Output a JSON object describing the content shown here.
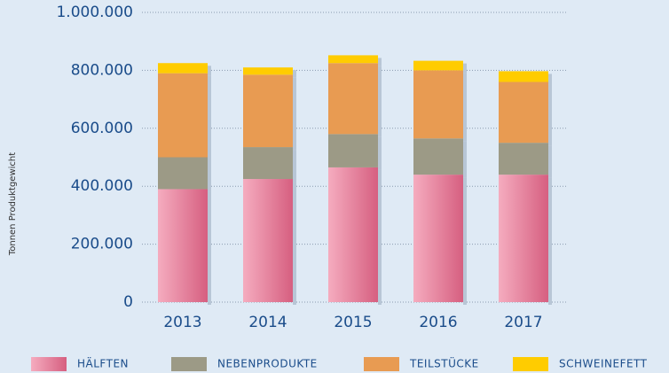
{
  "chart_data": {
    "type": "stacked_bar",
    "y_label": "Tonnen Produktgewicht",
    "categories": [
      "2013",
      "2014",
      "2015",
      "2016",
      "2017"
    ],
    "series": [
      {
        "name": "HÄLFTEN",
        "color": "#e07593",
        "values": [
          390000,
          425000,
          465000,
          440000,
          440000
        ]
      },
      {
        "name": "NEBENPRODUKTE",
        "color": "#9c9a86",
        "values": [
          110000,
          110000,
          115000,
          125000,
          110000
        ]
      },
      {
        "name": "TEILSTÜCKE",
        "color": "#e89b52",
        "values": [
          290000,
          250000,
          245000,
          235000,
          210000
        ]
      },
      {
        "name": "SCHWEINEFETT",
        "color": "#ffcc00",
        "values": [
          35000,
          25000,
          27000,
          33000,
          37000
        ]
      }
    ],
    "ylim": [
      0,
      1000000
    ],
    "yticks": [
      0,
      {
        "value": 200000,
        "label": "200.000"
      },
      {
        "value": 400000,
        "label": "400.000"
      },
      {
        "value": 600000,
        "label": "600.000"
      },
      {
        "value": 800000,
        "label": "800.000"
      },
      {
        "value": 1000000,
        "label": "1.000.000"
      }
    ],
    "grid": true
  }
}
